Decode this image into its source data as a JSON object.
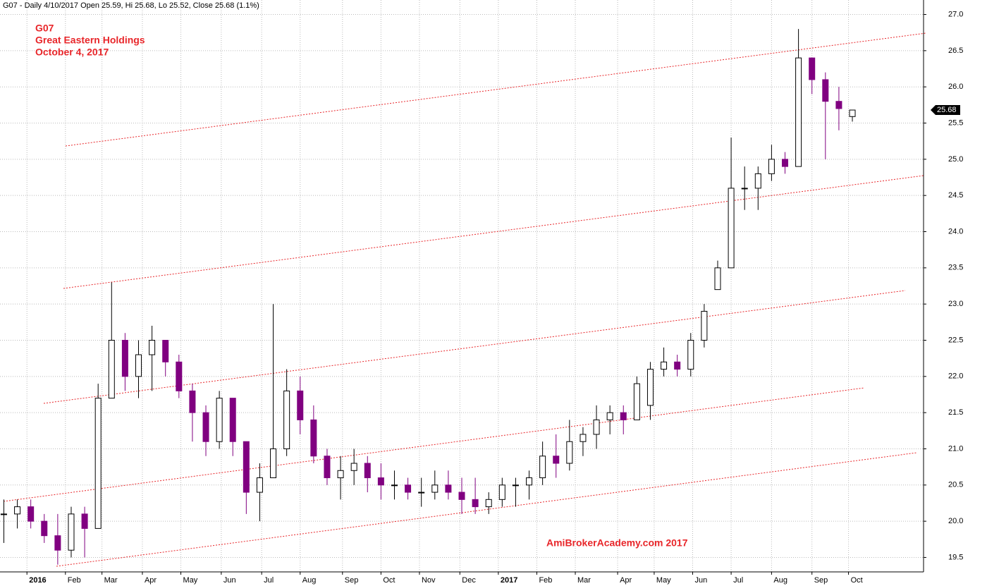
{
  "chart_data": {
    "type": "candlestick",
    "header": "G07 - Daily 4/10/2017 Open 25.59, Hi 25.68, Lo 25.52, Close 25.68 (1.1%)",
    "title": "G07",
    "subtitle": "Great Eastern Holdings",
    "date_label": "October 4, 2017",
    "watermark": "AmiBrokerAcademy.com  2017",
    "last_price": 25.68,
    "up_color": "#000000",
    "down_color": "#800080",
    "grid": true,
    "xlim": [
      0,
      480
    ],
    "ylim": [
      19.3,
      27.2
    ],
    "xticks": [
      {
        "value": 14,
        "label": "2016"
      },
      {
        "value": 34,
        "label": "Feb"
      },
      {
        "value": 53,
        "label": "Mar"
      },
      {
        "value": 74,
        "label": "Apr"
      },
      {
        "value": 94,
        "label": "May"
      },
      {
        "value": 115,
        "label": "Jun"
      },
      {
        "value": 136,
        "label": "Jul"
      },
      {
        "value": 156,
        "label": "Aug"
      },
      {
        "value": 178,
        "label": "Sep"
      },
      {
        "value": 198,
        "label": "Oct"
      },
      {
        "value": 218,
        "label": "Nov"
      },
      {
        "value": 239,
        "label": "Dec"
      },
      {
        "value": 259,
        "label": "2017"
      },
      {
        "value": 279,
        "label": "Feb"
      },
      {
        "value": 299,
        "label": "Mar"
      },
      {
        "value": 321,
        "label": "Apr"
      },
      {
        "value": 340,
        "label": "May"
      },
      {
        "value": 360,
        "label": "Jun"
      },
      {
        "value": 380,
        "label": "Jul"
      },
      {
        "value": 401,
        "label": "Aug"
      },
      {
        "value": 422,
        "label": "Sep"
      },
      {
        "value": 441,
        "label": "Oct"
      }
    ],
    "yticks": [
      19.5,
      {
        "value": 20,
        "label": "20.0"
      },
      20.5,
      {
        "value": 21,
        "label": "21.0"
      },
      21.5,
      {
        "value": 22,
        "label": "22.0"
      },
      22.5,
      {
        "value": 23,
        "label": "23.0"
      },
      23.5,
      {
        "value": 24,
        "label": "24.0"
      },
      24.5,
      {
        "value": 25,
        "label": "25.0"
      },
      25.5,
      {
        "value": 26,
        "label": "26.0"
      },
      26.5,
      {
        "value": 27,
        "label": "27.0"
      }
    ],
    "x": [
      2,
      9,
      16,
      23,
      30,
      37,
      44,
      51,
      58,
      65,
      72,
      79,
      86,
      93,
      100,
      107,
      114,
      121,
      128,
      135,
      142,
      149,
      156,
      163,
      170,
      177,
      184,
      191,
      198,
      205,
      212,
      219,
      226,
      233,
      240,
      247,
      254,
      261,
      268,
      275,
      282,
      289,
      296,
      303,
      310,
      317,
      324,
      331,
      338,
      345,
      352,
      359,
      366,
      373,
      380,
      387,
      394,
      401,
      408,
      415,
      422,
      429,
      436,
      443
    ],
    "open": [
      20.1,
      20.1,
      20.2,
      20.0,
      19.8,
      19.6,
      20.1,
      19.9,
      21.7,
      22.5,
      22.0,
      22.3,
      22.5,
      22.2,
      21.8,
      21.5,
      21.1,
      21.7,
      21.1,
      20.4,
      20.6,
      21.0,
      21.8,
      21.4,
      20.9,
      20.6,
      20.7,
      20.8,
      20.6,
      20.5,
      20.5,
      20.4,
      20.4,
      20.5,
      20.4,
      20.3,
      20.2,
      20.3,
      20.5,
      20.5,
      20.6,
      20.9,
      20.8,
      21.1,
      21.2,
      21.4,
      21.5,
      21.4,
      21.6,
      22.1,
      22.2,
      22.1,
      22.5,
      23.2,
      23.5,
      24.6,
      24.6,
      24.8,
      25.0,
      24.9,
      26.4,
      26.1,
      25.8,
      25.59
    ],
    "high": [
      20.3,
      20.3,
      20.3,
      20.1,
      20.1,
      20.2,
      20.2,
      21.9,
      23.3,
      22.6,
      22.5,
      22.7,
      22.5,
      22.3,
      21.9,
      21.6,
      21.8,
      21.7,
      21.1,
      20.8,
      23.0,
      22.1,
      22.0,
      21.6,
      21.0,
      20.9,
      21.0,
      20.9,
      20.8,
      20.7,
      20.6,
      20.6,
      20.7,
      20.7,
      20.6,
      20.6,
      20.4,
      20.6,
      20.6,
      20.7,
      21.1,
      21.2,
      21.4,
      21.3,
      21.6,
      21.6,
      21.6,
      22.0,
      22.2,
      22.4,
      22.3,
      22.6,
      23.0,
      23.6,
      25.3,
      24.9,
      24.9,
      25.2,
      25.1,
      26.8,
      26.4,
      26.2,
      26.0,
      25.68
    ],
    "low": [
      19.7,
      19.9,
      19.9,
      19.7,
      19.4,
      19.5,
      19.5,
      19.9,
      21.7,
      21.8,
      21.7,
      21.8,
      22.0,
      21.7,
      21.1,
      20.9,
      21.0,
      20.9,
      20.1,
      20.0,
      20.6,
      20.9,
      21.2,
      20.8,
      20.5,
      20.3,
      20.5,
      20.4,
      20.3,
      20.3,
      20.3,
      20.2,
      20.3,
      20.3,
      20.1,
      20.1,
      20.1,
      20.2,
      20.2,
      20.3,
      20.5,
      20.6,
      20.7,
      20.9,
      21.0,
      21.2,
      21.2,
      21.4,
      21.4,
      22.0,
      22.0,
      22.0,
      22.4,
      23.2,
      23.5,
      24.3,
      24.3,
      24.7,
      24.8,
      24.9,
      25.9,
      25.0,
      25.4,
      25.52
    ],
    "close": [
      20.1,
      20.2,
      20.0,
      19.8,
      19.6,
      20.1,
      19.9,
      21.7,
      22.5,
      22.0,
      22.3,
      22.5,
      22.2,
      21.8,
      21.5,
      21.1,
      21.7,
      21.1,
      20.4,
      20.6,
      21.0,
      21.8,
      21.4,
      20.9,
      20.6,
      20.7,
      20.8,
      20.6,
      20.5,
      20.5,
      20.4,
      20.4,
      20.5,
      20.4,
      20.3,
      20.2,
      20.3,
      20.5,
      20.5,
      20.6,
      20.9,
      20.8,
      21.1,
      21.2,
      21.4,
      21.5,
      21.4,
      21.9,
      22.1,
      22.2,
      22.1,
      22.5,
      22.9,
      23.5,
      24.6,
      24.6,
      24.8,
      25.0,
      24.9,
      26.4,
      26.1,
      25.8,
      25.7,
      25.68
    ]
  }
}
